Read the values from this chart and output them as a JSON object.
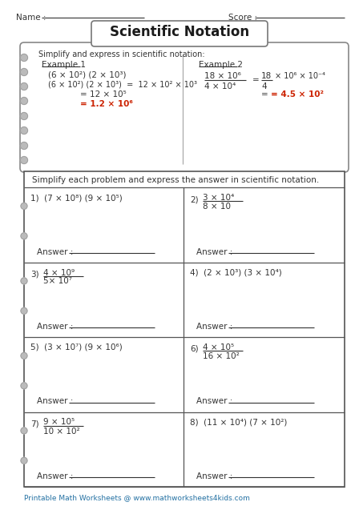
{
  "title": "Scientific Notation",
  "name_label": "Name :",
  "score_label": "Score :",
  "example_header": "Simplify and express in scientific notation:",
  "ex1_label": "Example 1",
  "ex1_line1": "(6 × 10²) (2 × 10³)",
  "ex1_line2_left": "(6 × 10²) (2 × 10³)  =  12 × 10² × 10³",
  "ex1_line3": "= 12 × 10⁵",
  "ex1_line4": "= 1.2 × 10⁶",
  "ex2_label": "Example 2",
  "ex2_frac_num": "18 × 10⁶",
  "ex2_frac_den": "4 × 10⁴",
  "ex2_rhs_num": "18",
  "ex2_rhs_den": "4",
  "ex2_rhs_right": "× 10⁶ × 10⁻⁴",
  "ex2_ans": "= 4.5 × 10²",
  "instructions": "Simplify each problem and express the answer in scientific notation.",
  "problems": [
    {
      "num": "1)",
      "type": "product",
      "expr": "(7 × 10⁸) (9 × 10⁵)"
    },
    {
      "num": "2)",
      "type": "fraction",
      "numer": "3 × 10⁴",
      "denom": "8 × 10"
    },
    {
      "num": "3)",
      "type": "fraction",
      "numer": "4 × 10⁹",
      "denom": "5× 10⁷"
    },
    {
      "num": "4)",
      "type": "product",
      "expr": "(2 × 10³) (3 × 10⁴)"
    },
    {
      "num": "5)",
      "type": "product",
      "expr": "(3 × 10⁷) (9 × 10⁶)"
    },
    {
      "num": "6)",
      "type": "fraction",
      "numer": "4 × 10⁵",
      "denom": "16 × 10²"
    },
    {
      "num": "7)",
      "type": "fraction",
      "numer": "9 × 10⁵",
      "denom": "10 × 10²"
    },
    {
      "num": "8)",
      "type": "product",
      "expr": "(11 × 10⁴) (7 × 10²)"
    }
  ],
  "answer_label": "Answer :",
  "footer": "Printable Math Worksheets @ www.mathworksheets4kids.com",
  "bg_color": "#ffffff",
  "red": "#cc2200",
  "blue_dark": "#1a5276",
  "text_dark": "#333333",
  "footer_color": "#2471a3",
  "border_color": "#666666",
  "hole_color": "#bbbbbb"
}
